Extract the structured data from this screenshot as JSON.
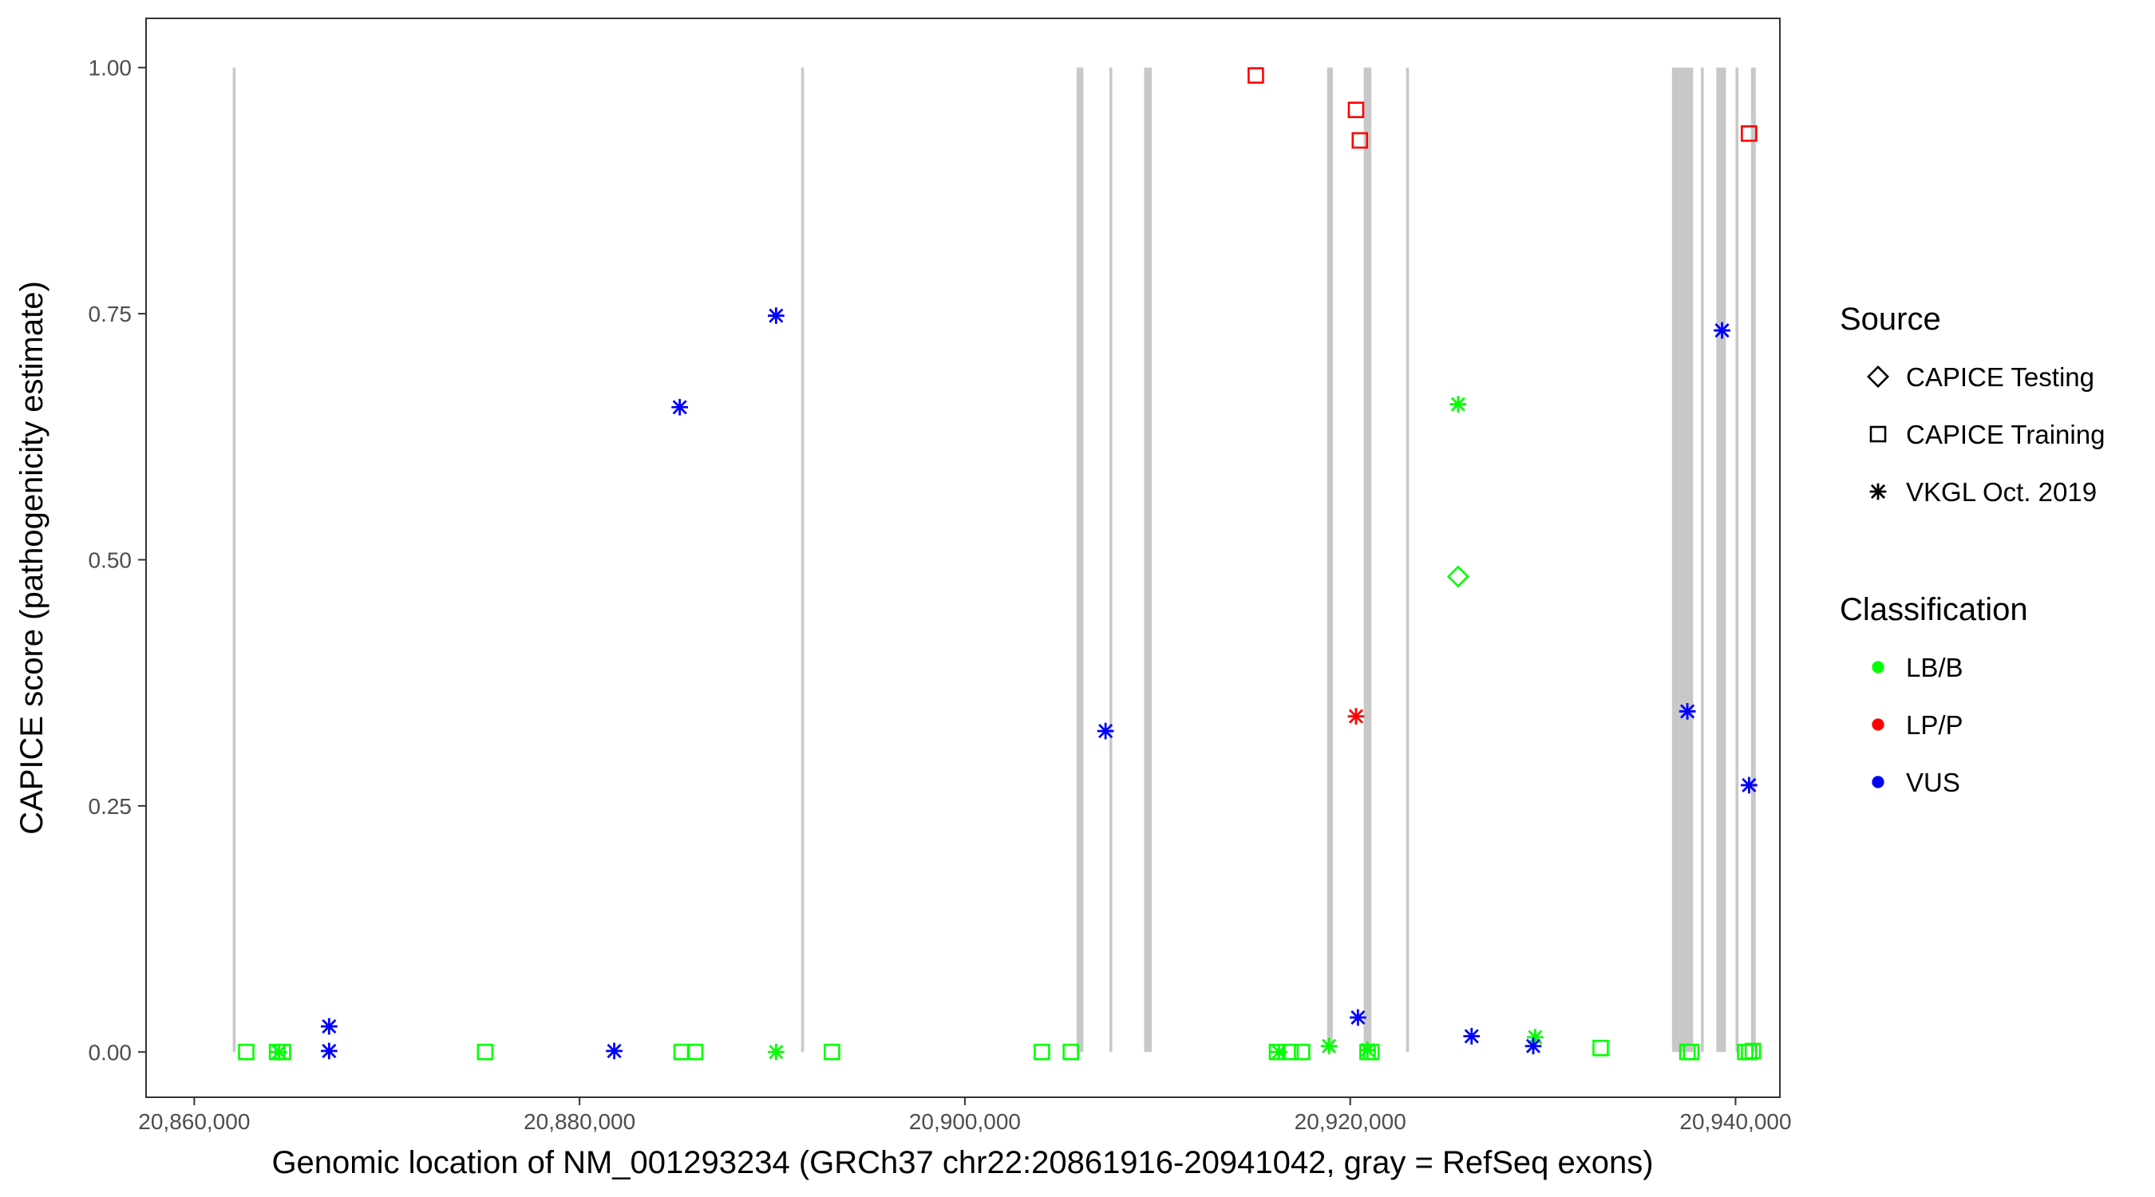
{
  "chart_data": {
    "type": "scatter",
    "xlabel": "Genomic location of NM_001293234 (GRCh37 chr22:20861916-20941042, gray = RefSeq exons)",
    "ylabel": "CAPICE score (pathogenicity estimate)",
    "xlim": [
      20857500,
      20942300
    ],
    "ylim": [
      -0.046,
      1.05
    ],
    "x_ticks": [
      20860000,
      20880000,
      20900000,
      20920000,
      20940000
    ],
    "x_tick_labels": [
      "20,860,000",
      "20,880,000",
      "20,900,000",
      "20,920,000",
      "20,940,000"
    ],
    "y_ticks": [
      0,
      0.25,
      0.5,
      0.75,
      1
    ],
    "y_tick_labels": [
      "0.00",
      "0.25",
      "0.50",
      "0.75",
      "1.00"
    ],
    "grid": false,
    "legend_placement": "right",
    "exon_color": "#c8c8c8",
    "exons": [
      [
        20862000,
        20862150
      ],
      [
        20891500,
        20891650
      ],
      [
        20905800,
        20906150
      ],
      [
        20907500,
        20907650
      ],
      [
        20909300,
        20909700
      ],
      [
        20918800,
        20919100
      ],
      [
        20920700,
        20921100
      ],
      [
        20922900,
        20923050
      ],
      [
        20936700,
        20937800
      ],
      [
        20938200,
        20938350
      ],
      [
        20939000,
        20939500
      ],
      [
        20940000,
        20940150
      ],
      [
        20940800,
        20941050
      ]
    ],
    "legends": {
      "source": {
        "title": "Source",
        "items": [
          {
            "label": "CAPICE Testing",
            "shape": "diamond"
          },
          {
            "label": "CAPICE Training",
            "shape": "square"
          },
          {
            "label": "VKGL Oct. 2019",
            "shape": "asterisk"
          }
        ]
      },
      "classification": {
        "title": "Classification",
        "items": [
          {
            "label": "LB/B",
            "color": "#00ff00"
          },
          {
            "label": "LP/P",
            "color": "#ff0000"
          },
          {
            "label": "VUS",
            "color": "#0000ff"
          }
        ]
      }
    },
    "series": [
      {
        "source": "CAPICE Training",
        "classification": "LP/P",
        "points": [
          [
            20915100,
            0.992
          ],
          [
            20920300,
            0.957
          ],
          [
            20920500,
            0.926
          ],
          [
            20940700,
            0.933
          ]
        ]
      },
      {
        "source": "CAPICE Training",
        "classification": "LB/B",
        "points": [
          [
            20862700,
            0.0
          ],
          [
            20864300,
            0.0
          ],
          [
            20864600,
            0.0
          ],
          [
            20875100,
            0.0
          ],
          [
            20885300,
            0.0
          ],
          [
            20886000,
            0.0
          ],
          [
            20893100,
            0.0
          ],
          [
            20904000,
            0.0
          ],
          [
            20905500,
            0.0
          ],
          [
            20916200,
            0.0
          ],
          [
            20916900,
            0.0
          ],
          [
            20917500,
            0.0
          ],
          [
            20920900,
            0.0
          ],
          [
            20921100,
            0.0
          ],
          [
            20933000,
            0.004
          ],
          [
            20937500,
            0.0
          ],
          [
            20937700,
            0.0
          ],
          [
            20940500,
            0.0
          ],
          [
            20940700,
            0.0
          ],
          [
            20940900,
            0.001
          ]
        ]
      },
      {
        "source": "CAPICE Testing",
        "classification": "LB/B",
        "points": [
          [
            20925600,
            0.483
          ]
        ]
      },
      {
        "source": "VKGL Oct. 2019",
        "classification": "LB/B",
        "points": [
          [
            20864400,
            0.0
          ],
          [
            20890200,
            0.0
          ],
          [
            20916300,
            0.0
          ],
          [
            20918900,
            0.006
          ],
          [
            20920900,
            0.002
          ],
          [
            20925600,
            0.658
          ],
          [
            20929600,
            0.015
          ]
        ]
      },
      {
        "source": "VKGL Oct. 2019",
        "classification": "LP/P",
        "points": [
          [
            20920300,
            0.341
          ]
        ]
      },
      {
        "source": "VKGL Oct. 2019",
        "classification": "VUS",
        "points": [
          [
            20867000,
            0.026
          ],
          [
            20867000,
            0.001
          ],
          [
            20881800,
            0.001
          ],
          [
            20885200,
            0.655
          ],
          [
            20890200,
            0.748
          ],
          [
            20907300,
            0.326
          ],
          [
            20920400,
            0.035
          ],
          [
            20926300,
            0.016
          ],
          [
            20929500,
            0.006
          ],
          [
            20937500,
            0.346
          ],
          [
            20939300,
            0.733
          ],
          [
            20940700,
            0.271
          ]
        ]
      }
    ]
  }
}
